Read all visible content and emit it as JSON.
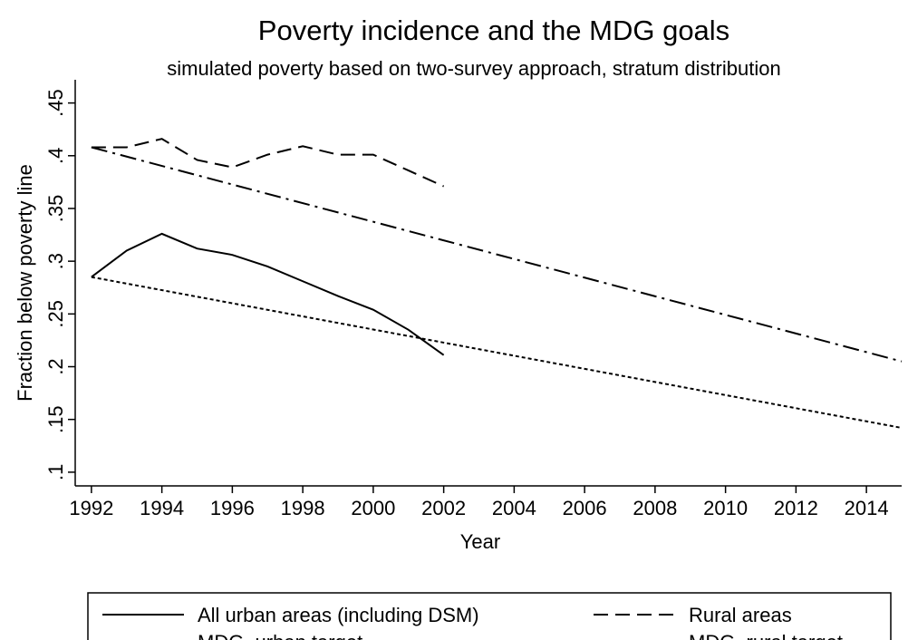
{
  "chart_data": {
    "type": "line",
    "title": "Poverty incidence and the MDG goals",
    "subtitle": "simulated poverty based on two-survey approach, stratum distribution",
    "x_label": "Year",
    "y_label": "Fraction below poverty line",
    "xlim": [
      1991.54,
      2015
    ],
    "xticks": [
      1992,
      1994,
      1996,
      1998,
      2000,
      2002,
      2004,
      2006,
      2008,
      2010,
      2012,
      2014
    ],
    "ylim": [
      0.087,
      0.472
    ],
    "yticks": [
      {
        "value": 0.1,
        "label": ".1"
      },
      {
        "value": 0.15,
        "label": ".15"
      },
      {
        "value": 0.2,
        "label": ".2"
      },
      {
        "value": 0.25,
        "label": ".25"
      },
      {
        "value": 0.3,
        "label": ".3"
      },
      {
        "value": 0.35,
        "label": ".35"
      },
      {
        "value": 0.4,
        "label": ".4"
      },
      {
        "value": 0.45,
        "label": ".45"
      }
    ],
    "grid": false,
    "series": [
      {
        "name": "All urban areas (including DSM)",
        "color": "#000000",
        "dash": "none",
        "x": [
          1992,
          1993,
          1994,
          1995,
          1996,
          1997,
          1998,
          1999,
          2000,
          2001,
          2002
        ],
        "values": [
          0.285,
          0.31,
          0.326,
          0.312,
          0.306,
          0.295,
          0.281,
          0.267,
          0.254,
          0.235,
          0.211
        ]
      },
      {
        "name": "Rural areas",
        "color": "#000000",
        "dash": "16 8",
        "x": [
          1992,
          1993,
          1994,
          1995,
          1996,
          1997,
          1998,
          1999,
          2000,
          2001,
          2002
        ],
        "values": [
          0.408,
          0.408,
          0.416,
          0.396,
          0.389,
          0.401,
          0.409,
          0.401,
          0.401,
          0.386,
          0.371
        ]
      },
      {
        "name": "MDG, urban target",
        "color": "#000000",
        "dash": "4 3",
        "x": [
          1992,
          2015
        ],
        "values": [
          0.285,
          0.142
        ]
      },
      {
        "name": "MDG, rural target",
        "color": "#000000",
        "dash": "18 6 3 6",
        "x": [
          1992,
          2015
        ],
        "values": [
          0.408,
          0.205
        ]
      }
    ]
  }
}
